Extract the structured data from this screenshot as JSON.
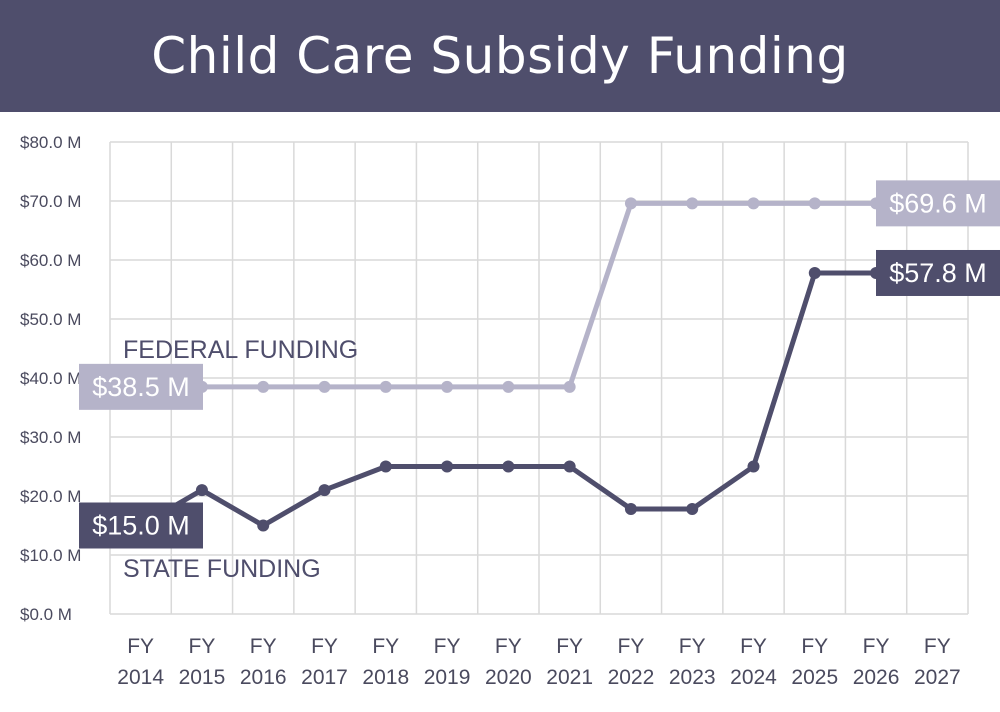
{
  "title": "Child Care Subsidy Funding",
  "chart_data": {
    "type": "line",
    "title": "Child Care Subsidy Funding",
    "x": [
      "FY 2014",
      "FY 2015",
      "FY 2016",
      "FY 2017",
      "FY 2018",
      "FY 2019",
      "FY 2020",
      "FY 2021",
      "FY 2022",
      "FY 2023",
      "FY 2024",
      "FY 2025",
      "FY 2026",
      "FY 2027"
    ],
    "x_tick_lines": [
      [
        "FY",
        "2014"
      ],
      [
        "FY",
        "2015"
      ],
      [
        "FY",
        "2016"
      ],
      [
        "FY",
        "2017"
      ],
      [
        "FY",
        "2018"
      ],
      [
        "FY",
        "2019"
      ],
      [
        "FY",
        "2020"
      ],
      [
        "FY",
        "2021"
      ],
      [
        "FY",
        "2022"
      ],
      [
        "FY",
        "2023"
      ],
      [
        "FY",
        "2024"
      ],
      [
        "FY",
        "2025"
      ],
      [
        "FY",
        "2026"
      ],
      [
        "FY",
        "2027"
      ]
    ],
    "ylim": [
      0,
      80
    ],
    "y_ticks": [
      0,
      10,
      20,
      30,
      40,
      50,
      60,
      70,
      80
    ],
    "y_tick_labels": [
      "$0.0 M",
      "$10.0 M",
      "$20.0 M",
      "$30.0 M",
      "$40.0 M",
      "$50.0 M",
      "$60.0 M",
      "$70.0 M",
      "$80.0 M"
    ],
    "grid": true,
    "series": [
      {
        "name": "FEDERAL FUNDING",
        "color": "#b5b3c9",
        "values": [
          38.5,
          38.5,
          38.5,
          38.5,
          38.5,
          38.5,
          38.5,
          38.5,
          69.6,
          69.6,
          69.6,
          69.6,
          69.6,
          null
        ],
        "start_label": "$38.5 M",
        "end_label": "$69.6 M"
      },
      {
        "name": "STATE FUNDING",
        "color": "#4f4e6c",
        "values": [
          15.0,
          21.0,
          15.0,
          21.0,
          25.0,
          25.0,
          25.0,
          25.0,
          17.8,
          17.8,
          25.0,
          57.8,
          57.8,
          null
        ],
        "start_label": "$15.0 M",
        "end_label": "$57.8 M"
      }
    ]
  }
}
